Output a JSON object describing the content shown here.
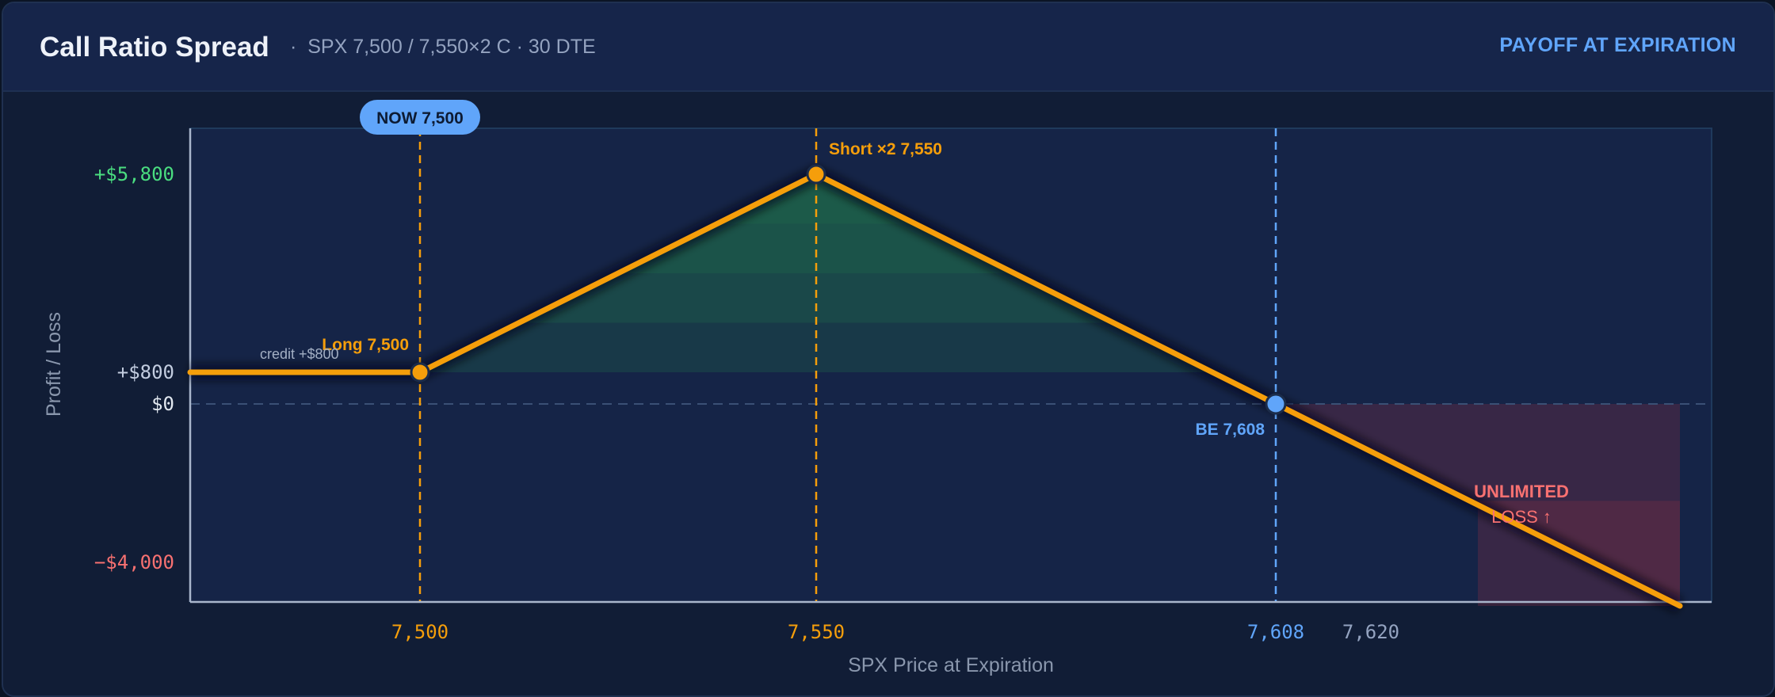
{
  "header": {
    "title": "Call Ratio Spread",
    "separator": "·",
    "subtitle": "SPX 7,500 / 7,550×2 C · 30 DTE",
    "badge": "PAYOFF AT EXPIRATION"
  },
  "chart_data": {
    "type": "line",
    "title": "Call Ratio Spread",
    "xlabel": "SPX Price at Expiration",
    "ylabel": "Profit / Loss",
    "xlim": [
      7471,
      7663
    ],
    "ylim": [
      -5000,
      7000
    ],
    "grid": false,
    "series": [
      {
        "x": [
          7471,
          7500,
          7550,
          7608,
          7659
        ],
        "values": [
          800,
          800,
          5800,
          0,
          -5100
        ]
      }
    ],
    "x_ticks": [
      {
        "value": 7500,
        "label": "7,500",
        "color": "#f59e0b"
      },
      {
        "value": 7550,
        "label": "7,550",
        "color": "#f59e0b"
      },
      {
        "value": 7608,
        "label": "7,608",
        "color": "#60a5fa"
      },
      {
        "value": 7620,
        "label": "7,620",
        "color": "#94a3c0"
      }
    ],
    "y_ticks": [
      {
        "value": 5800,
        "label": "+$5,800",
        "color": "#4ade80"
      },
      {
        "value": 800,
        "label": "+$800",
        "color": "#c3cde0"
      },
      {
        "value": 0,
        "label": "$0",
        "color": "#e2e8f0"
      },
      {
        "value": -4000,
        "label": "−$4,000",
        "color": "#f87171"
      }
    ],
    "markers": [
      {
        "x": 7500,
        "label": "NOW 7,500",
        "kind": "now"
      },
      {
        "x": 7500,
        "y": 800,
        "label": "Long 7,500",
        "kind": "long"
      },
      {
        "x": 7550,
        "y": 5800,
        "label": "Short ×2 7,550",
        "kind": "short"
      },
      {
        "x": 7608,
        "y": 0,
        "label": "BE 7,608",
        "kind": "breakeven"
      }
    ],
    "annotations": {
      "credit": "credit +$800",
      "loss_line1": "UNLIMITED",
      "loss_line2": "LOSS ↑"
    },
    "colors": {
      "payoff": "#f59e0b",
      "breakeven": "#60a5fa",
      "profit_fill": "#1f6e4a",
      "loss_fill": "#7a2f45",
      "loss_text": "#f87171"
    }
  }
}
